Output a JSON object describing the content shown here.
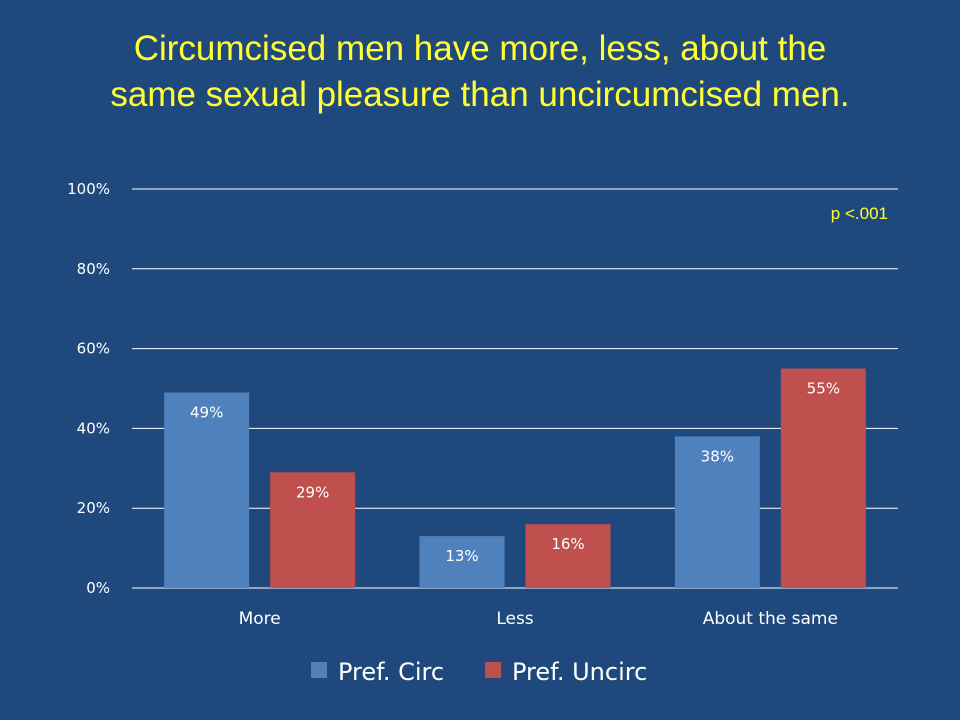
{
  "chart_data": {
    "type": "bar",
    "title_lines": [
      "Circumcised men have more, less, about the",
      "same sexual pleasure than uncircumcised men."
    ],
    "categories": [
      "More",
      "Less",
      "About the same"
    ],
    "series": [
      {
        "name": "Pref. Circ",
        "color": "#4f81bd",
        "values": [
          49,
          13,
          38
        ],
        "labels": [
          "49%",
          "13%",
          "38%"
        ]
      },
      {
        "name": "Pref. Uncirc",
        "color": "#c0504d",
        "values": [
          29,
          16,
          55
        ],
        "labels": [
          "29%",
          "16%",
          "55%"
        ]
      }
    ],
    "yticks": [
      "0%",
      "20%",
      "40%",
      "60%",
      "80%",
      "100%"
    ],
    "ylim": [
      0,
      100
    ],
    "grid": true,
    "legend_position": "bottom",
    "annotation": "p <.001"
  }
}
